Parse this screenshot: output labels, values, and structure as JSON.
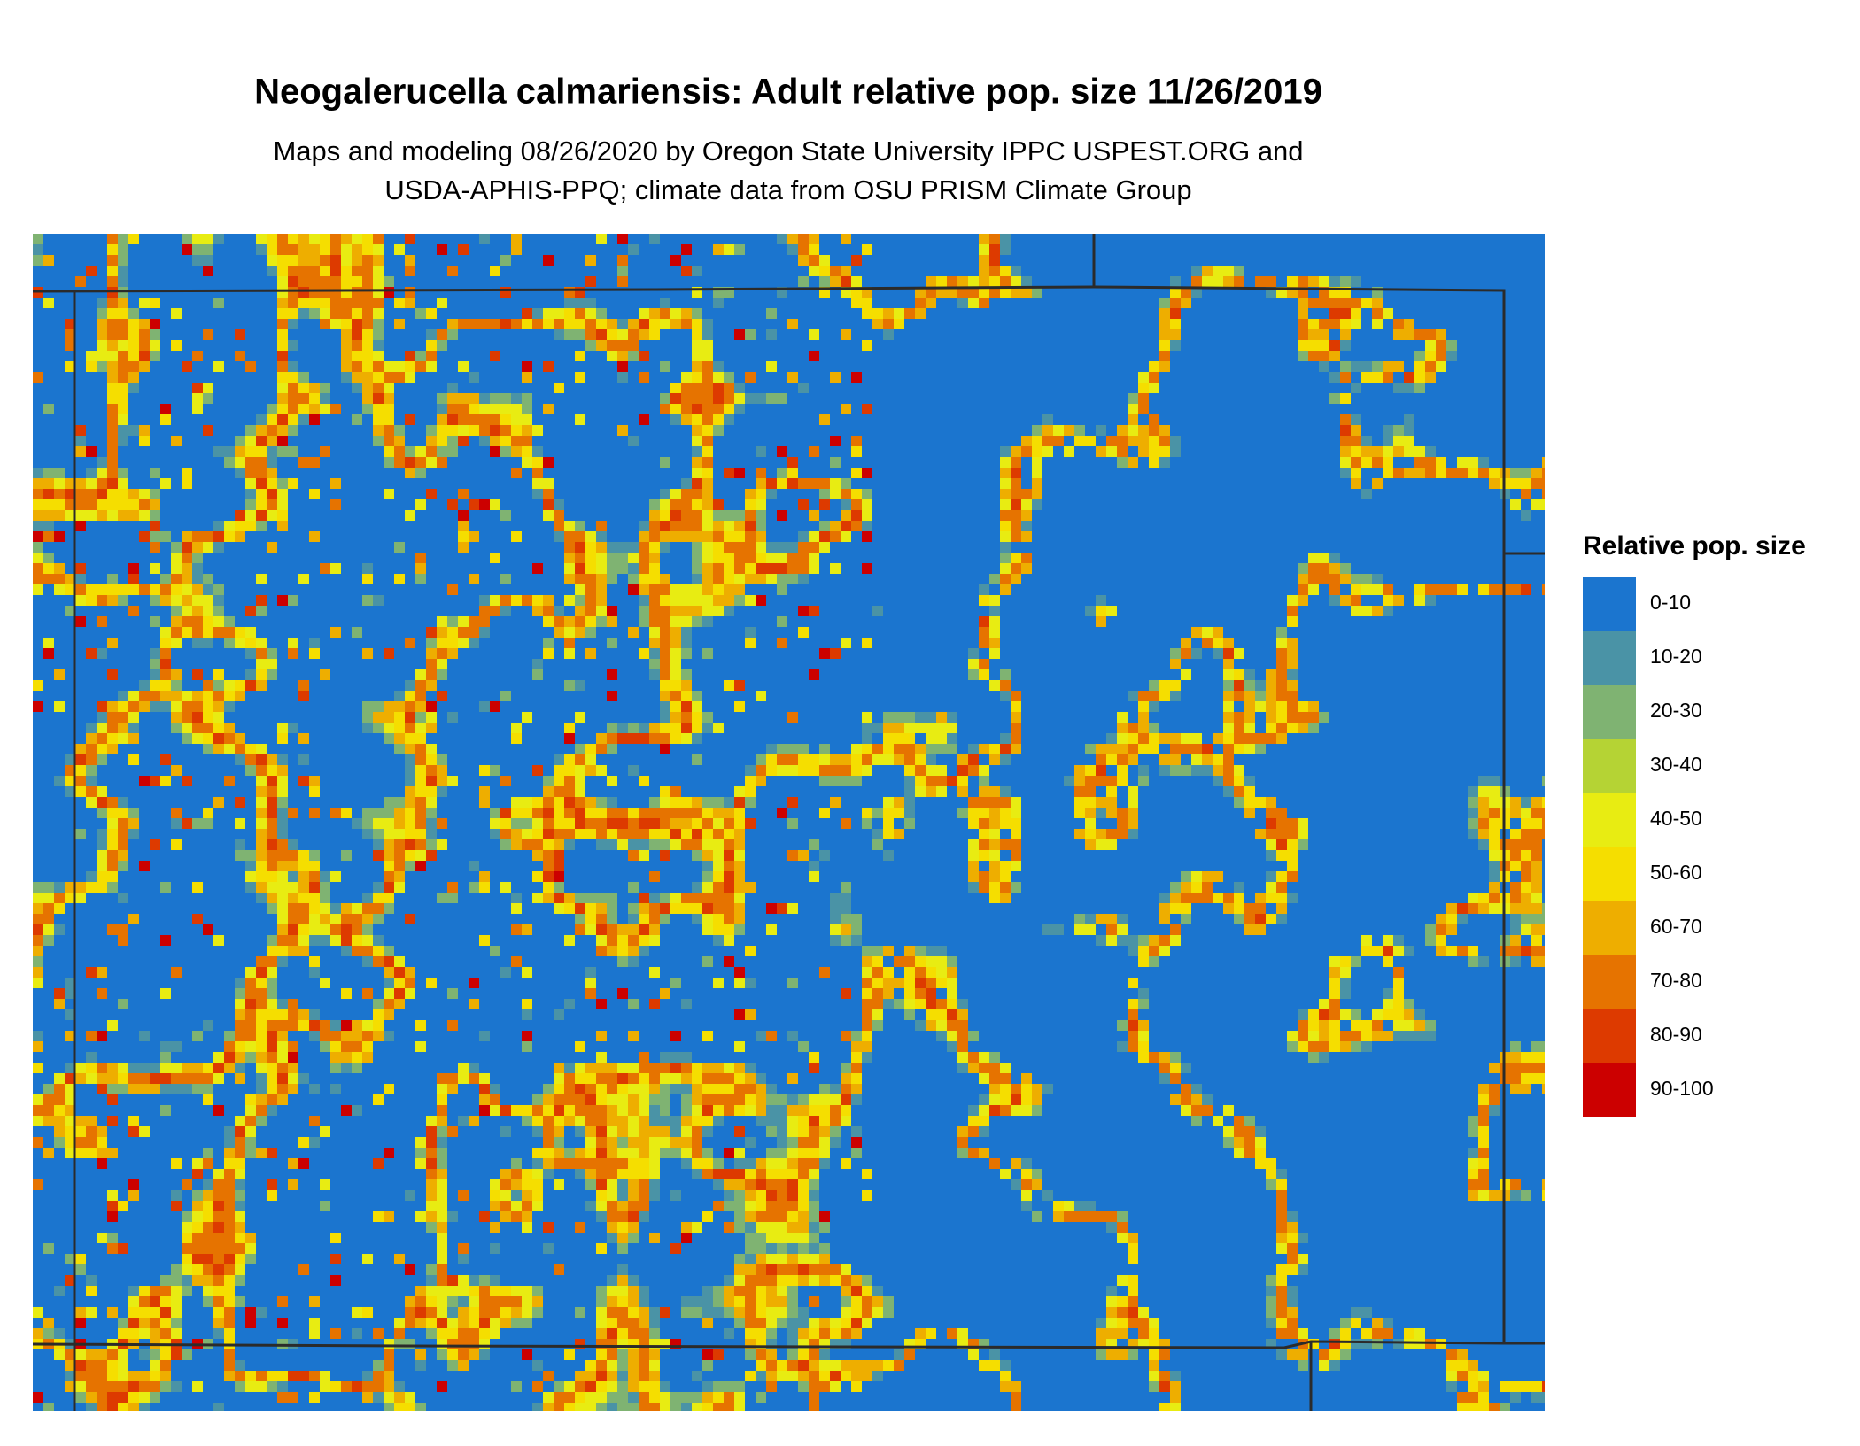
{
  "header": {
    "title": "Neogalerucella calmariensis: Adult relative pop. size 11/26/2019",
    "subtitle": [
      "Maps and modeling 08/26/2020 by Oregon State University IPPC USPEST.ORG and",
      "USDA-APHIS-PPQ; climate data from OSU PRISM Climate Group"
    ]
  },
  "legend": {
    "title": "Relative pop. size",
    "items": [
      {
        "label": "0-10",
        "color": "#1b75cf"
      },
      {
        "label": "10-20",
        "color": "#4a93a6"
      },
      {
        "label": "20-30",
        "color": "#7fb372"
      },
      {
        "label": "30-40",
        "color": "#b5d334"
      },
      {
        "label": "40-50",
        "color": "#e8ec12"
      },
      {
        "label": "50-60",
        "color": "#f5de00"
      },
      {
        "label": "60-70",
        "color": "#eeae00"
      },
      {
        "label": "70-80",
        "color": "#e67300"
      },
      {
        "label": "80-90",
        "color": "#dd3a00"
      },
      {
        "label": "90-100",
        "color": "#cc0000"
      }
    ]
  }
}
